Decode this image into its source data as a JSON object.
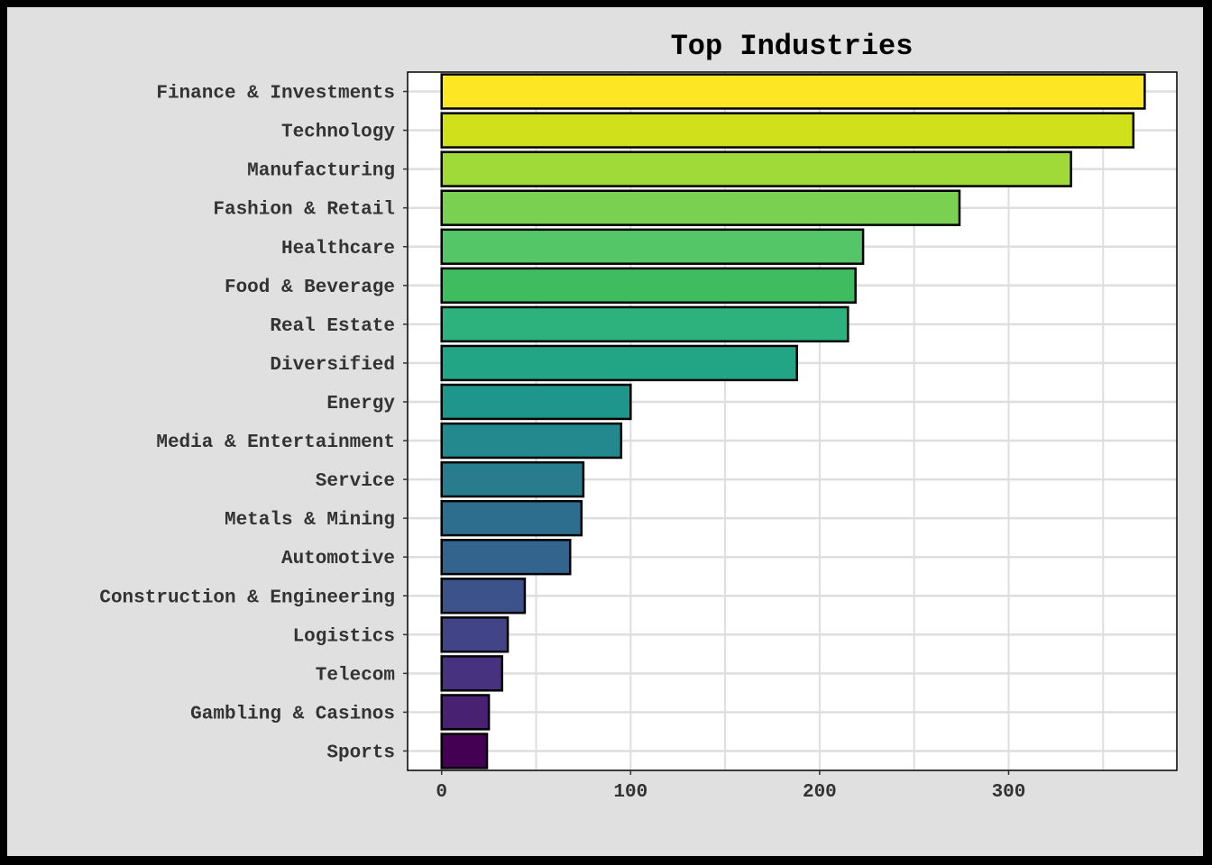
{
  "chart_data": {
    "type": "bar",
    "orientation": "horizontal",
    "title": "Top Industries",
    "xlabel": "",
    "ylabel": "",
    "categories": [
      "Finance & Investments",
      "Technology",
      "Manufacturing",
      "Fashion & Retail",
      "Healthcare",
      "Food & Beverage",
      "Real Estate",
      "Diversified",
      "Energy",
      "Media & Entertainment",
      "Service",
      "Metals & Mining",
      "Automotive",
      "Construction & Engineering",
      "Logistics",
      "Telecom",
      "Gambling & Casinos",
      "Sports"
    ],
    "values": [
      372,
      366,
      333,
      274,
      223,
      219,
      215,
      188,
      100,
      95,
      75,
      74,
      68,
      44,
      35,
      32,
      25,
      24
    ],
    "colors": [
      "#fde725",
      "#d0e11c",
      "#a0da39",
      "#7ad151",
      "#55c667",
      "#3fbc60",
      "#2db27d",
      "#21a585",
      "#1f968b",
      "#23898e",
      "#287c8e",
      "#2d6e8e",
      "#32648e",
      "#3b528b",
      "#414487",
      "#46327e",
      "#482173",
      "#440154"
    ],
    "bar_outline": "#000000",
    "xlim": [
      -18,
      389
    ],
    "xticks": [
      0,
      100,
      200,
      300
    ],
    "grid": true,
    "legend": "none",
    "background": "#e0e0e0",
    "panel_background": "#ffffff",
    "grid_color": "#dedede"
  }
}
